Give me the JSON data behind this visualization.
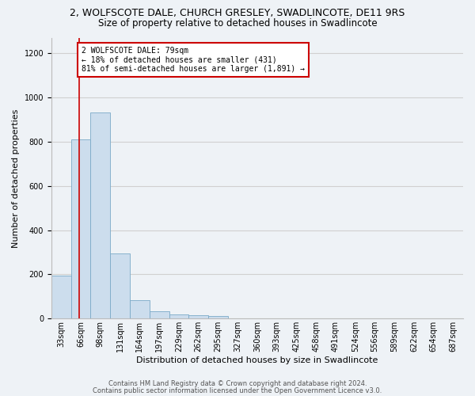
{
  "title_line1": "2, WOLFSCOTE DALE, CHURCH GRESLEY, SWADLINCOTE, DE11 9RS",
  "title_line2": "Size of property relative to detached houses in Swadlincote",
  "xlabel": "Distribution of detached houses by size in Swadlincote",
  "ylabel": "Number of detached properties",
  "bar_color": "#ccdded",
  "bar_edge_color": "#7aaac8",
  "bin_labels": [
    "33sqm",
    "66sqm",
    "98sqm",
    "131sqm",
    "164sqm",
    "197sqm",
    "229sqm",
    "262sqm",
    "295sqm",
    "327sqm",
    "360sqm",
    "393sqm",
    "425sqm",
    "458sqm",
    "491sqm",
    "524sqm",
    "556sqm",
    "589sqm",
    "622sqm",
    "654sqm",
    "687sqm"
  ],
  "bar_values": [
    193,
    810,
    930,
    293,
    85,
    35,
    20,
    15,
    12,
    0,
    0,
    0,
    0,
    0,
    0,
    0,
    0,
    0,
    0,
    0,
    0
  ],
  "ylim": [
    0,
    1270
  ],
  "yticks": [
    0,
    200,
    400,
    600,
    800,
    1000,
    1200
  ],
  "property_line_x": 1.42,
  "annotation_text": "2 WOLFSCOTE DALE: 79sqm\n← 18% of detached houses are smaller (431)\n81% of semi-detached houses are larger (1,891) →",
  "annotation_box_color": "#ffffff",
  "annotation_box_edge_color": "#cc0000",
  "footer_line1": "Contains HM Land Registry data © Crown copyright and database right 2024.",
  "footer_line2": "Contains public sector information licensed under the Open Government Licence v3.0.",
  "grid_color": "#d0d0d0",
  "background_color": "#eef2f6",
  "title_fontsize": 9,
  "subtitle_fontsize": 8.5,
  "ylabel_fontsize": 8,
  "xlabel_fontsize": 8,
  "tick_fontsize": 7,
  "annotation_fontsize": 7,
  "footer_fontsize": 6
}
